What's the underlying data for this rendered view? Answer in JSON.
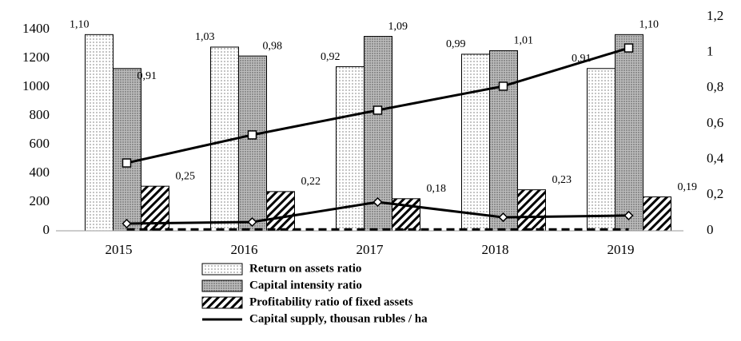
{
  "chart_data": {
    "type": "bar",
    "categories": [
      "2015",
      "2016",
      "2017",
      "2018",
      "2019"
    ],
    "ylim": [
      0,
      1400
    ],
    "yticks": [
      0,
      200,
      400,
      600,
      800,
      1000,
      1200,
      1400
    ],
    "y2lim": [
      0,
      1.2
    ],
    "y2ticks": [
      0,
      {
        "value": 0.2,
        "label": "0,2"
      },
      {
        "value": 0.4,
        "label": "0,4"
      },
      {
        "value": 0.6,
        "label": "0,6"
      },
      {
        "value": 0.8,
        "label": "0,8"
      },
      1,
      {
        "value": 1.2,
        "label": "1,2"
      }
    ],
    "series": [
      {
        "name": "Return on assets ratio",
        "type": "bar",
        "axis": "y2",
        "pattern": "dots",
        "color": "#ffffff",
        "values": [
          1.1,
          1.03,
          0.92,
          0.99,
          0.91
        ],
        "value_labels": [
          "1,10",
          "1,03",
          "0,92",
          "0,99",
          "0,91"
        ]
      },
      {
        "name": "Capital intensity ratio",
        "type": "bar",
        "axis": "y2",
        "pattern": "dense",
        "color": "#bdbdbd",
        "values": [
          0.91,
          0.98,
          1.09,
          1.01,
          1.1
        ],
        "value_labels": [
          "0,91",
          "0,98",
          "1,09",
          "1,01",
          "1,10"
        ]
      },
      {
        "name": "Profitability ratio of fixed assets",
        "type": "bar",
        "axis": "y2",
        "pattern": "hatch",
        "color": "#ffffff",
        "values": [
          0.25,
          0.22,
          0.18,
          0.23,
          0.19
        ],
        "value_labels": [
          "0,25",
          "0,22",
          "0,18",
          "0,23",
          "0,19"
        ]
      },
      {
        "name": "Capital supply, thousan rubles / ha",
        "type": "line",
        "marker": "square",
        "color": "#000000",
        "values": [
          472,
          667,
          839,
          1006,
          1272
        ]
      },
      {
        "type": "line",
        "marker": "diamond",
        "color": "#000000",
        "values": [
          50,
          61,
          200,
          94,
          106
        ]
      },
      {
        "type": "line",
        "dash": true,
        "color": "#000000",
        "values": [
          10,
          10,
          10,
          10,
          10
        ]
      }
    ]
  }
}
